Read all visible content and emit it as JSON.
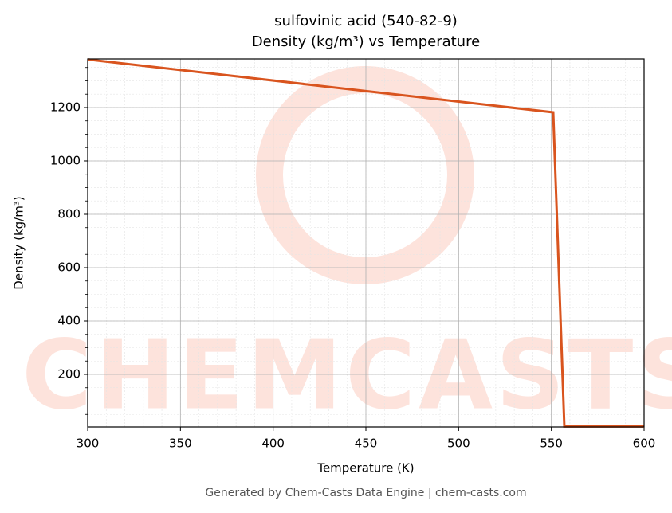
{
  "chart_data": {
    "type": "line",
    "title": "sulfovinic acid (540-82-9)",
    "subtitle": "Density (kg/m³) vs Temperature",
    "x_label": "Temperature (K)",
    "y_label": "Density (kg/m³)",
    "footer": "Generated by Chem-Casts Data Engine | chem-casts.com",
    "watermark": "CHEMCASTS",
    "x": [
      300,
      551,
      557,
      600
    ],
    "series": [
      {
        "name": "Density",
        "color": "#d9541e",
        "values": [
          1380,
          1182,
          5,
          5
        ]
      }
    ],
    "xlim": [
      300,
      600
    ],
    "xticks": [
      300,
      350,
      400,
      450,
      500,
      550,
      600
    ],
    "ylim": [
      3,
      1382
    ],
    "yticks": [
      200,
      400,
      600,
      800,
      1000,
      1200
    ],
    "grid": true,
    "minor_grid": true
  }
}
